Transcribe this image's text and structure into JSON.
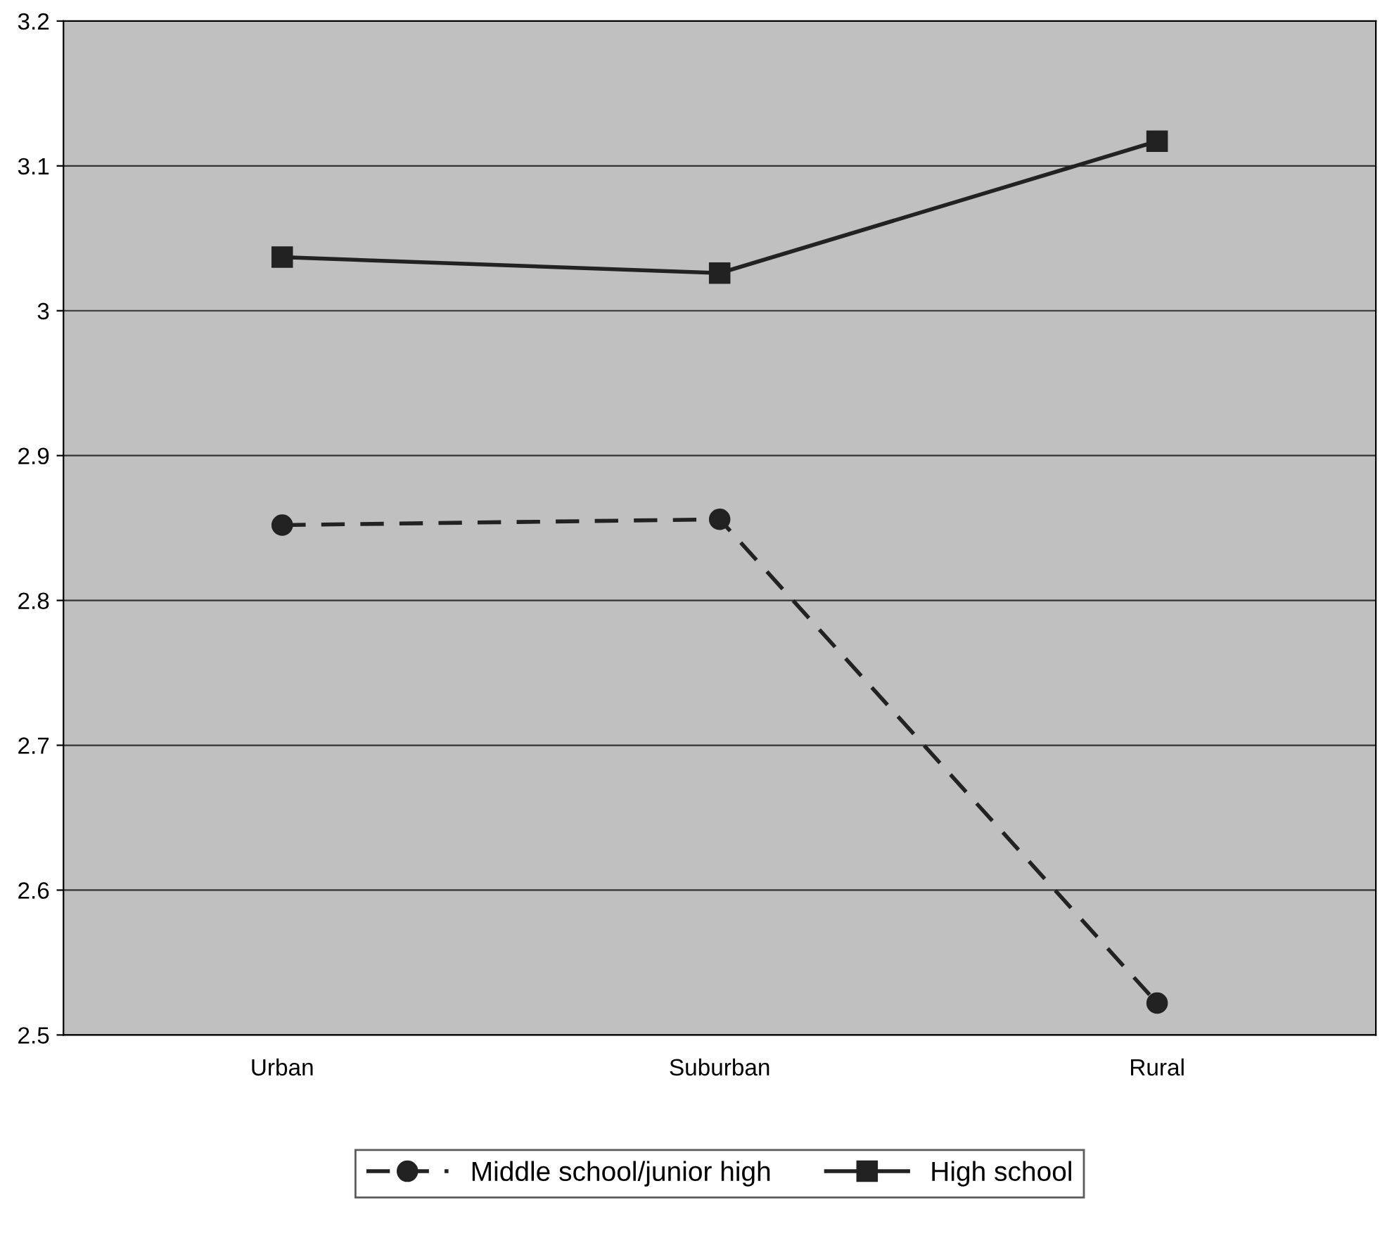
{
  "chart_data": {
    "type": "line",
    "categories": [
      "Urban",
      "Suburban",
      "Rural"
    ],
    "series": [
      {
        "name": "Middle school/junior high",
        "color": "#222222",
        "values": [
          2.852,
          2.856,
          2.522
        ],
        "marker": "circle",
        "line_style": "dashed"
      },
      {
        "name": "High school",
        "color": "#222222",
        "values": [
          3.037,
          3.026,
          3.117
        ],
        "marker": "square",
        "line_style": "solid"
      }
    ],
    "ylim": [
      2.5,
      3.2
    ],
    "yticks": [
      2.5,
      2.6,
      2.7,
      2.8,
      2.9,
      3,
      3.1,
      3.2
    ],
    "grid": "y",
    "legend": "bottom"
  }
}
